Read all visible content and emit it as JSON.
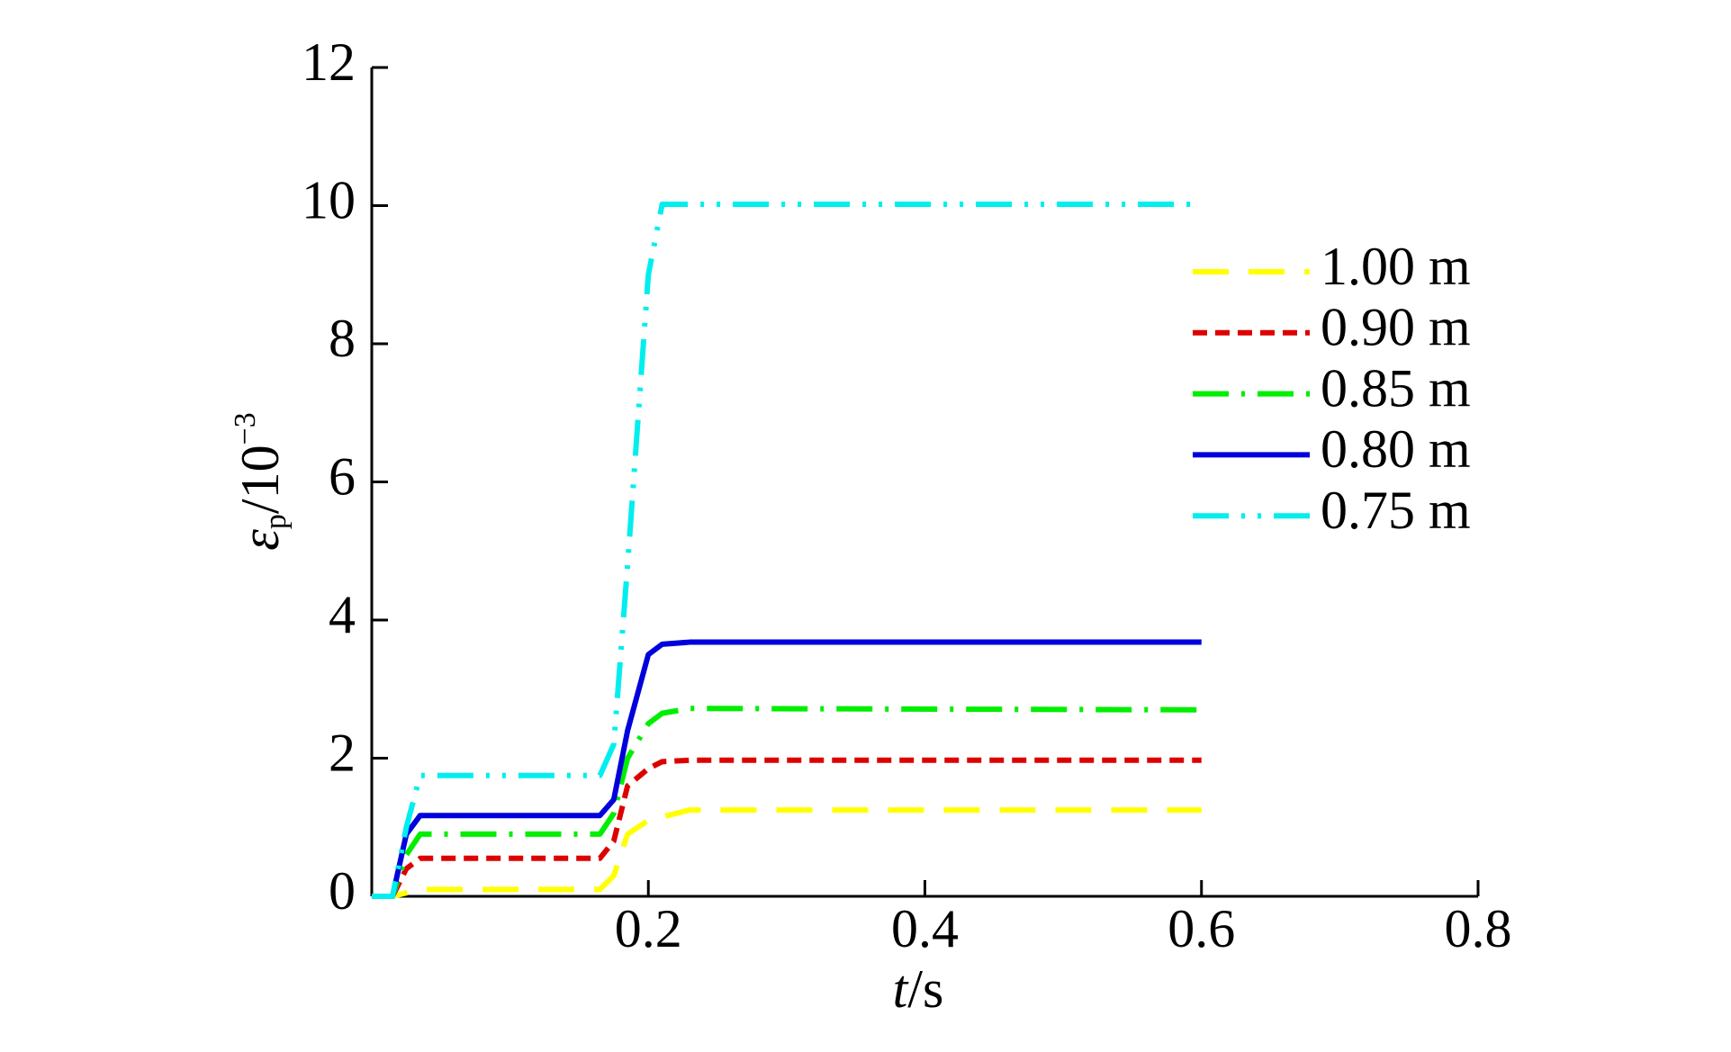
{
  "chart_data": {
    "type": "line",
    "xlabel": {
      "symbol": "t",
      "unit": "/s"
    },
    "ylabel": {
      "symbol": "ε",
      "subscript": "p",
      "unit": "/10",
      "exponent": "−3"
    },
    "x": [
      0,
      0.015,
      0.025,
      0.035,
      0.165,
      0.175,
      0.185,
      0.2,
      0.21,
      0.23,
      0.6
    ],
    "series": [
      {
        "name": "1.00 m",
        "color": "#ffff00",
        "dash": "40 22",
        "values": [
          0,
          0,
          0.05,
          0.1,
          0.1,
          0.3,
          0.9,
          1.1,
          1.15,
          1.25,
          1.25
        ]
      },
      {
        "name": "0.90 m",
        "color": "#dd0000",
        "dash": "16 9",
        "values": [
          0,
          0,
          0.4,
          0.55,
          0.55,
          0.8,
          1.6,
          1.85,
          1.95,
          1.97,
          1.97
        ]
      },
      {
        "name": "0.85 m",
        "color": "#00ee00",
        "dash": "40 14 4 14",
        "values": [
          0,
          0,
          0.6,
          0.9,
          0.9,
          1.2,
          2.0,
          2.5,
          2.65,
          2.72,
          2.7
        ]
      },
      {
        "name": "0.80 m",
        "color": "#0000dd",
        "dash": "none",
        "values": [
          0,
          0,
          0.9,
          1.17,
          1.17,
          1.4,
          2.4,
          3.5,
          3.65,
          3.68,
          3.68
        ]
      },
      {
        "name": "0.75 m",
        "color": "#00eeee",
        "dash": "40 14 4 14 4 14",
        "values": [
          0,
          0,
          1.0,
          1.75,
          1.75,
          2.2,
          4.8,
          9.0,
          10.02,
          10.02,
          10.02
        ]
      }
    ],
    "xlim": [
      0,
      0.8
    ],
    "xticks": [
      0.2,
      0.4,
      0.6,
      0.8
    ],
    "ylim": [
      0,
      12
    ],
    "yticks": [
      0,
      2,
      4,
      6,
      8,
      10,
      12
    ],
    "grid": false,
    "legend": "upper right"
  }
}
